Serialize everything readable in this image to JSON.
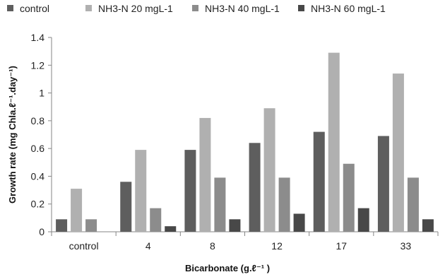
{
  "chart_data": {
    "type": "bar",
    "categories": [
      "control",
      "4",
      "8",
      "12",
      "17",
      "33"
    ],
    "series": [
      {
        "name": "control",
        "color": "#5e5e5e",
        "values": [
          0.09,
          0.36,
          0.59,
          0.64,
          0.72,
          0.69
        ]
      },
      {
        "name": "NH3-N 20 mgL-1",
        "color": "#b0b0b0",
        "values": [
          0.31,
          0.59,
          0.82,
          0.89,
          1.29,
          1.14
        ]
      },
      {
        "name": "NH3-N 40 mgL-1",
        "color": "#8c8c8c",
        "values": [
          0.09,
          0.17,
          0.39,
          0.39,
          0.49,
          0.39
        ]
      },
      {
        "name": "NH3-N 60 mgL-1",
        "color": "#484848",
        "values": [
          0.0,
          0.04,
          0.09,
          0.13,
          0.17,
          0.09
        ]
      }
    ],
    "yticks": [
      "0",
      "0.2",
      "0.4",
      "0.6",
      "0.8",
      "1",
      "1.2",
      "1.4"
    ],
    "ylim": [
      0,
      1.4
    ],
    "xlabel": "Bicarbonate (g.ℓ⁻¹ )",
    "ylabel": "Growth rate (mg Chla.ℓ⁻¹.day⁻¹)",
    "legend_position": "top",
    "grid": false
  }
}
